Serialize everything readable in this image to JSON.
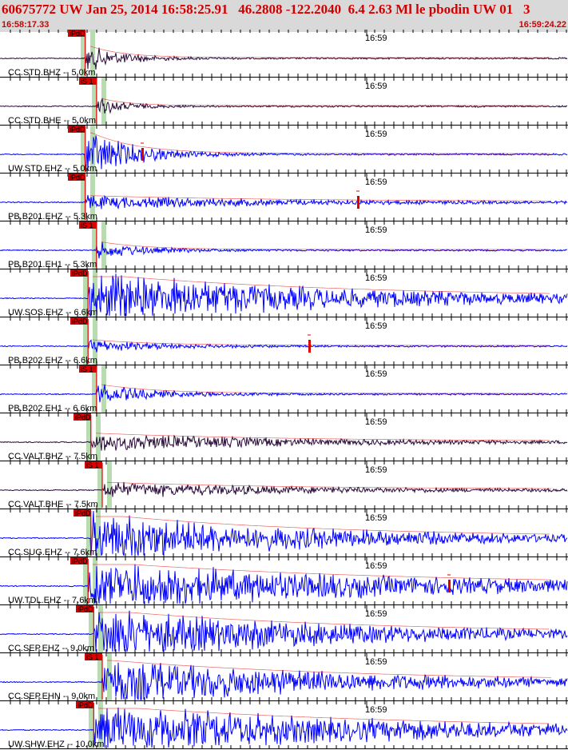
{
  "header": {
    "title": "60675772 UW Jan 25, 2014 16:58:25.91   46.2808 -122.2040  6.4 2.63 Ml le pbodin UW 01   3",
    "start_time": "16:58:17.33",
    "end_time": "16:59:24.22"
  },
  "colors": {
    "trace_blue": "#0000ff",
    "trace_dark": "#2a0a3a",
    "pick_red": "#dd0000",
    "highlight_green": "#b7dcb0",
    "header_bg": "#d9d9d9",
    "header_text": "#d10000"
  },
  "chart_data": {
    "type": "seismogram",
    "time_range": [
      "16:58:17.33",
      "16:59:24.22"
    ],
    "tick_label": "16:59",
    "traces": [
      {
        "label": "CC.STD.BHZ -- 5.0km",
        "pick": "iPdD",
        "color": "dark",
        "amp": 0.55,
        "decay": 0.06,
        "onset": 0.15,
        "scodaMarker": null
      },
      {
        "label": "CC.STD.BHE -- 5.0km",
        "pick": "iS 1",
        "color": "dark",
        "amp": 0.35,
        "decay": 0.05,
        "onset": 0.17,
        "scodaMarker": null
      },
      {
        "label": "UW.STD.EHZ -- 5.0km",
        "pick": "iPdD",
        "color": "blue",
        "amp": 1.0,
        "decay": 0.08,
        "onset": 0.15,
        "scodaMarker": 0.25
      },
      {
        "label": "PB.B201.EHZ -- 5.3km",
        "pick": "iPdD",
        "color": "blue",
        "amp": 0.25,
        "decay": 0.35,
        "onset": 0.15,
        "scodaMarker": 0.63
      },
      {
        "label": "PB.B201.EH1 -- 5.3km",
        "pick": "iS 1",
        "color": "blue",
        "amp": 0.35,
        "decay": 0.08,
        "onset": 0.17,
        "scodaMarker": null
      },
      {
        "label": "UW.SOS.EHZ -- 6.6km",
        "pick": "iPdD",
        "color": "blue",
        "amp": 1.0,
        "decay": 0.45,
        "onset": 0.155,
        "scodaMarker": null
      },
      {
        "label": "PB.B202.EHZ -- 6.6km",
        "pick": "iPdD",
        "color": "blue",
        "amp": 0.25,
        "decay": 0.12,
        "onset": 0.155,
        "scodaMarker": 0.545
      },
      {
        "label": "PB.B202.EH1 -- 6.6km",
        "pick": "iS 1",
        "color": "blue",
        "amp": 0.4,
        "decay": 0.1,
        "onset": 0.17,
        "scodaMarker": null
      },
      {
        "label": "CC.VALT.BHZ -- 7.5km",
        "pick": "iPdD",
        "color": "dark",
        "amp": 0.35,
        "decay": 0.35,
        "onset": 0.16,
        "scodaMarker": null
      },
      {
        "label": "CC.VALT.BHE -- 7.5km",
        "pick": "iS 1",
        "color": "dark",
        "amp": 0.3,
        "decay": 0.35,
        "onset": 0.18,
        "scodaMarker": null
      },
      {
        "label": "CC.SUG.EHZ -- 7.6km",
        "pick": "iPdD",
        "color": "blue",
        "amp": 1.0,
        "decay": 0.4,
        "onset": 0.16,
        "scodaMarker": null
      },
      {
        "label": "UW.TDL.EHZ -- 7.6km",
        "pick": "iPdD",
        "color": "blue",
        "amp": 1.0,
        "decay": 0.55,
        "onset": 0.155,
        "scodaMarker": 0.79
      },
      {
        "label": "CC.SEP.EHZ -- 9.0km",
        "pick": "iPdD",
        "color": "blue",
        "amp": 1.0,
        "decay": 0.45,
        "onset": 0.165,
        "scodaMarker": null
      },
      {
        "label": "CC.SEP.EHN -- 9.0km",
        "pick": "iS 1",
        "color": "blue",
        "amp": 0.9,
        "decay": 0.45,
        "onset": 0.18,
        "scodaMarker": null
      },
      {
        "label": "UW.SHW.EHZ -- 10.0km",
        "pick": "iPdD",
        "color": "blue",
        "amp": 1.0,
        "decay": 0.55,
        "onset": 0.165,
        "scodaMarker": null
      }
    ]
  }
}
